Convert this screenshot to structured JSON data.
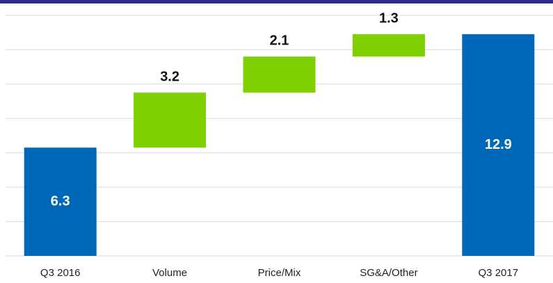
{
  "chart_data": {
    "type": "waterfall",
    "categories": [
      "Q3 2016",
      "Volume",
      "Price/Mix",
      "SG&A/Other",
      "Q3 2017"
    ],
    "values": [
      6.3,
      3.2,
      2.1,
      1.3,
      12.9
    ],
    "totals": [
      true,
      false,
      false,
      false,
      true
    ],
    "total_color": "#0068b8",
    "increment_color": "#7ed000",
    "ylim": [
      0,
      14
    ],
    "yticks": [
      0,
      2,
      4,
      6,
      8,
      10,
      12,
      14
    ],
    "grid": true
  }
}
